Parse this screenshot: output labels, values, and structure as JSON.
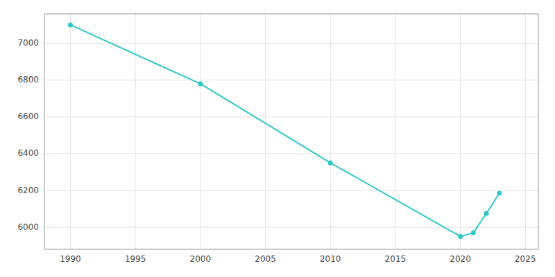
{
  "chart_data": {
    "type": "line",
    "x": [
      1990,
      2000,
      2010,
      2020,
      2021,
      2022,
      2023
    ],
    "values": [
      7100,
      6780,
      6350,
      5950,
      5970,
      6075,
      6185
    ],
    "color": "#2ec8c8",
    "marker": "circle",
    "xlim": [
      1988,
      2026
    ],
    "ylim": [
      5880,
      7160
    ],
    "xticks": [
      1990,
      1995,
      2000,
      2005,
      2010,
      2015,
      2020,
      2025
    ],
    "yticks": [
      6000,
      6200,
      6400,
      6600,
      6800,
      7000
    ],
    "grid": true
  }
}
